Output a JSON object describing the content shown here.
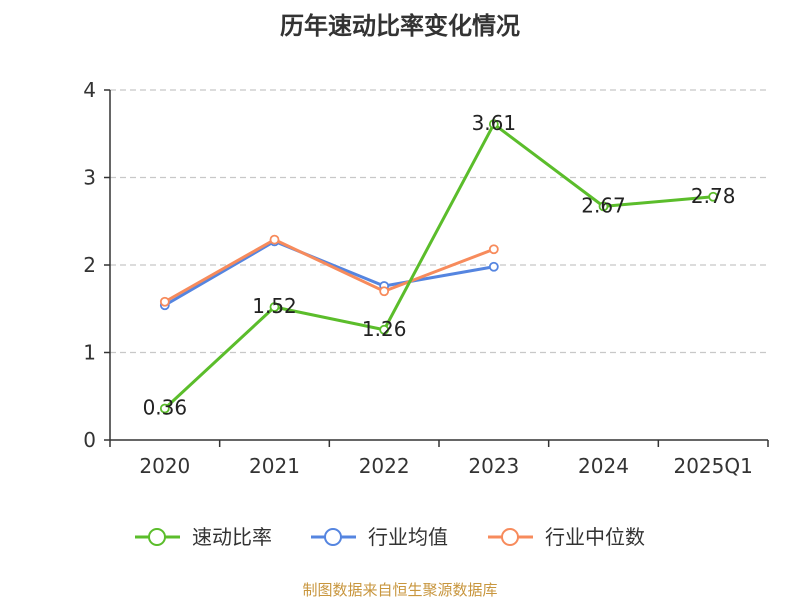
{
  "chart_data": {
    "type": "line",
    "title": "历年速动比率变化情况",
    "categories": [
      "2020",
      "2021",
      "2022",
      "2023",
      "2024",
      "2025Q1"
    ],
    "ylim": [
      0,
      4
    ],
    "yticks": [
      0,
      1,
      2,
      3,
      4
    ],
    "grid": true,
    "legend_position": "bottom",
    "series": [
      {
        "name": "速动比率",
        "values": [
          0.36,
          1.52,
          1.26,
          3.61,
          2.67,
          2.78
        ],
        "color": "#5bbd2b",
        "show_labels": true
      },
      {
        "name": "行业均值",
        "values": [
          1.54,
          2.27,
          1.76,
          1.98,
          null,
          null
        ],
        "color": "#5585e0",
        "show_labels": false
      },
      {
        "name": "行业中位数",
        "values": [
          1.58,
          2.29,
          1.7,
          2.18,
          null,
          null
        ],
        "color": "#f78b5c",
        "show_labels": false
      }
    ]
  },
  "footer": {
    "source": "制图数据来自恒生聚源数据库",
    "color": "#c8963e"
  }
}
